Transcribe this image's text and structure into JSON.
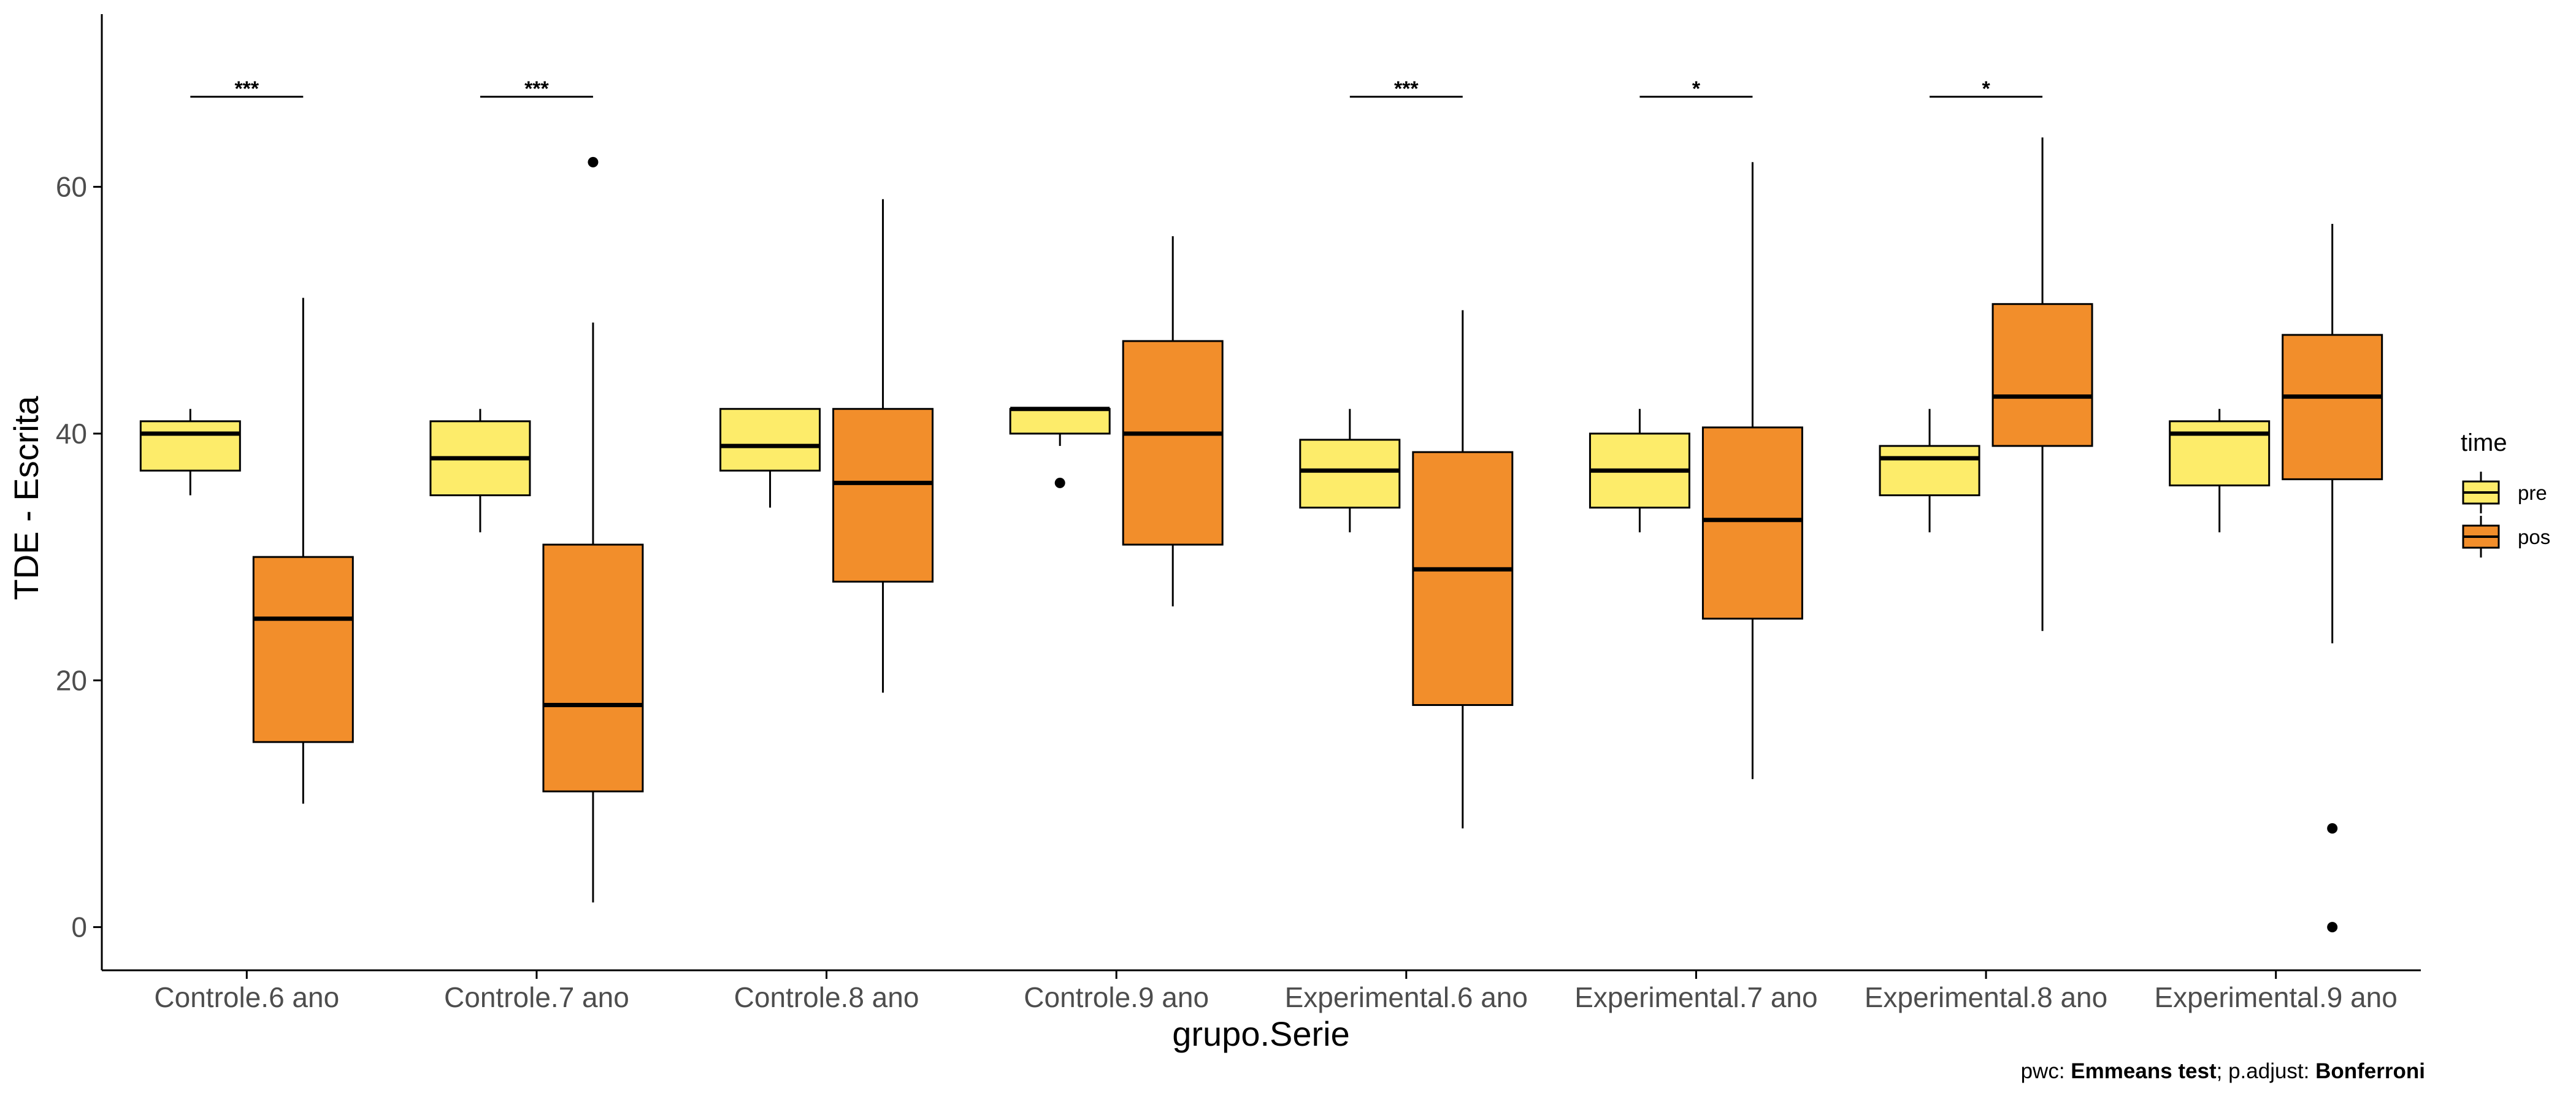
{
  "chart_data": {
    "type": "boxplot",
    "ylabel": "TDE - Escrita",
    "xlabel": "grupo.Serie",
    "ylim": [
      -3.5,
      74
    ],
    "yticks": [
      0,
      20,
      40,
      60
    ],
    "categories": [
      "Controle.6 ano",
      "Controle.7 ano",
      "Controle.8 ano",
      "Controle.9 ano",
      "Experimental.6 ano",
      "Experimental.7 ano",
      "Experimental.8 ano",
      "Experimental.9 ano"
    ],
    "legend": {
      "title": "time",
      "position": "right",
      "entries": [
        {
          "label": "pre",
          "color": "#FDEC6A"
        },
        {
          "label": "pos",
          "color": "#F28E2B"
        }
      ]
    },
    "series": [
      {
        "name": "pre",
        "color": "#FDEC6A",
        "boxes": [
          {
            "min": 35,
            "q1": 37,
            "median": 40,
            "q3": 41,
            "max": 42,
            "outliers": []
          },
          {
            "min": 32,
            "q1": 35,
            "median": 38,
            "q3": 41,
            "max": 42,
            "outliers": []
          },
          {
            "min": 34,
            "q1": 37,
            "median": 39,
            "q3": 42,
            "max": 42,
            "outliers": []
          },
          {
            "min": 39,
            "q1": 40,
            "median": 42,
            "q3": 42,
            "max": 42,
            "outliers": [
              36
            ]
          },
          {
            "min": 32,
            "q1": 34,
            "median": 37,
            "q3": 39.5,
            "max": 42,
            "outliers": []
          },
          {
            "min": 32,
            "q1": 34,
            "median": 37,
            "q3": 40,
            "max": 42,
            "outliers": []
          },
          {
            "min": 32,
            "q1": 35,
            "median": 38,
            "q3": 39,
            "max": 42,
            "outliers": []
          },
          {
            "min": 32,
            "q1": 35.8,
            "median": 40,
            "q3": 41,
            "max": 42,
            "outliers": []
          }
        ]
      },
      {
        "name": "pos",
        "color": "#F28E2B",
        "boxes": [
          {
            "min": 10,
            "q1": 15,
            "median": 25,
            "q3": 30,
            "max": 51,
            "outliers": []
          },
          {
            "min": 2,
            "q1": 11,
            "median": 18,
            "q3": 31,
            "max": 49,
            "outliers": [
              62
            ]
          },
          {
            "min": 19,
            "q1": 28,
            "median": 36,
            "q3": 42,
            "max": 59,
            "outliers": []
          },
          {
            "min": 26,
            "q1": 31,
            "median": 40,
            "q3": 47.5,
            "max": 56,
            "outliers": []
          },
          {
            "min": 8,
            "q1": 18,
            "median": 29,
            "q3": 38.5,
            "max": 50,
            "outliers": []
          },
          {
            "min": 12,
            "q1": 25,
            "median": 33,
            "q3": 40.5,
            "max": 62,
            "outliers": []
          },
          {
            "min": 24,
            "q1": 39,
            "median": 43,
            "q3": 50.5,
            "max": 64,
            "outliers": []
          },
          {
            "min": 23,
            "q1": 36.3,
            "median": 43,
            "q3": 48,
            "max": 57,
            "outliers": [
              8,
              0
            ]
          }
        ]
      }
    ],
    "significance": [
      {
        "category": "Controle.6 ano",
        "label": "***",
        "y": 67.3
      },
      {
        "category": "Controle.7 ano",
        "label": "***",
        "y": 67.3
      },
      {
        "category": "Experimental.6 ano",
        "label": "***",
        "y": 67.3
      },
      {
        "category": "Experimental.7 ano",
        "label": "*",
        "y": 67.3
      },
      {
        "category": "Experimental.8 ano",
        "label": "*",
        "y": 67.3
      }
    ]
  },
  "caption": {
    "pwc_prefix": "pwc: ",
    "pwc_method": "Emmeans test",
    "sep": "; p.adjust: ",
    "adjust_method": "Bonferroni"
  }
}
